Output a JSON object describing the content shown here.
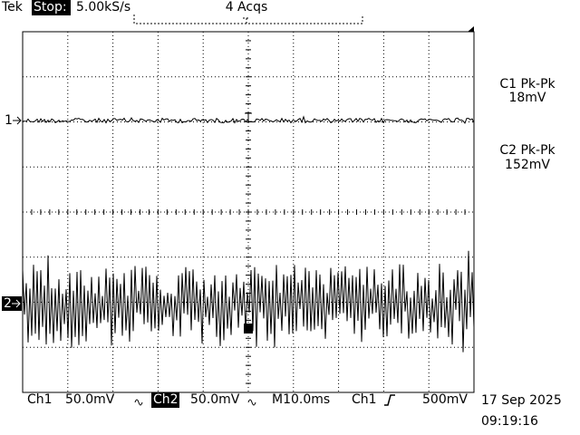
{
  "header": {
    "brand": "Tek",
    "state": "Stop:",
    "sample_rate": "5.00kS/s",
    "acquisitions": "4 Acqs"
  },
  "measurements": [
    {
      "label": "C1 Pk-Pk",
      "value": "18mV"
    },
    {
      "label": "C2 Pk-Pk",
      "value": "152mV"
    }
  ],
  "channel_markers": [
    "1",
    "2"
  ],
  "footer": {
    "ch1": {
      "name": "Ch1",
      "scale": "50.0mV"
    },
    "ch2": {
      "name": "Ch2",
      "scale": "50.0mV"
    },
    "timebase": "M10.0ms",
    "trigger": {
      "source": "Ch1",
      "level": "500mV"
    },
    "date": "17 Sep 2025",
    "time": "09:19:16"
  }
}
